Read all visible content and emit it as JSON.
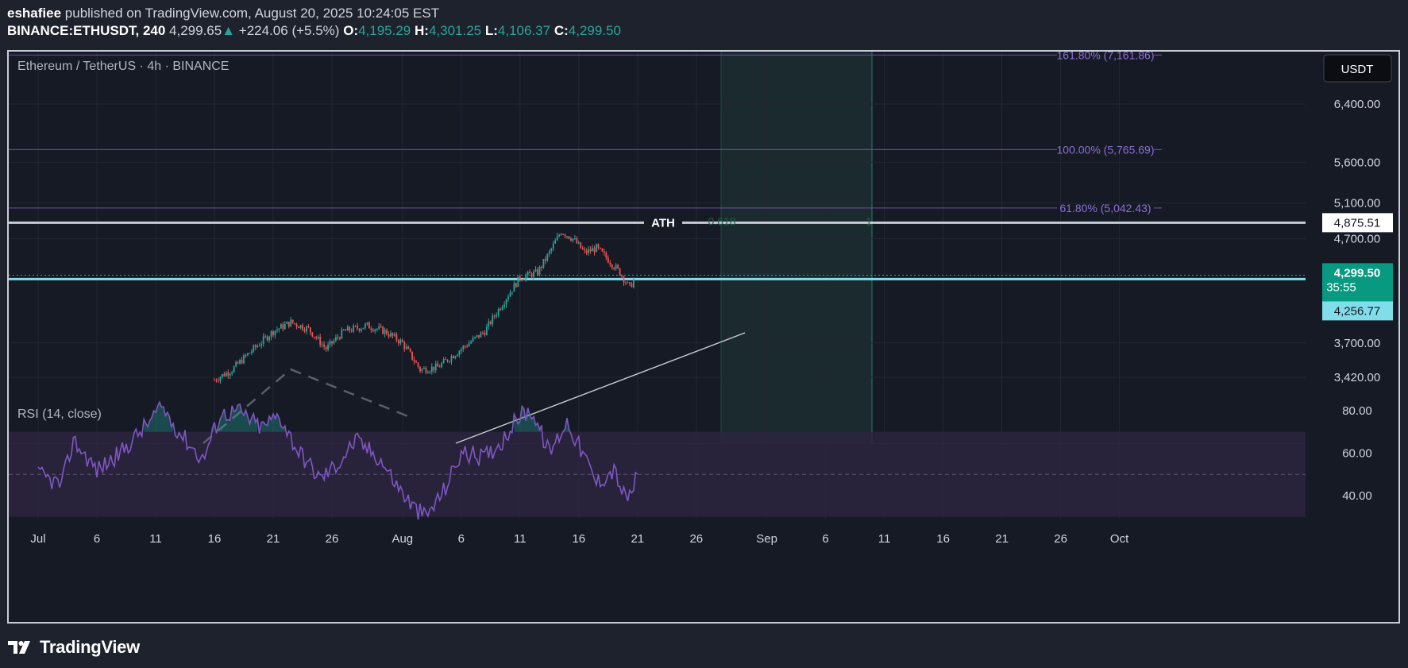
{
  "header": {
    "user": "eshafiee",
    "published_text": "published on TradingView.com, August 20, 2025 10:24:05 EST",
    "symbol": "BINANCE:ETHUSDT, 240",
    "price": "4,299.65",
    "change": "+224.06 (+5.5%)",
    "open_label": "O:",
    "open": "4,195.29",
    "high_label": "H:",
    "high": "4,301.25",
    "low_label": "L:",
    "low": "4,106.37",
    "close_label": "C:",
    "close": "4,299.50"
  },
  "chart": {
    "pair_title": "Ethereum / TetherUS · 4h · BINANCE",
    "currency_button": "USDT",
    "ath_label": "ATH",
    "faint_level_label": "0.618",
    "faint_level_right": "1",
    "rsi_label": "RSI (14, close)",
    "current_price_label": "4,299.50",
    "countdown": "35:55",
    "support_label": "4,256.77",
    "ath_price_label": "4,875.51"
  },
  "chart_data": {
    "type": "candlestick",
    "price_axis": {
      "scale": "log",
      "tick_labels": [
        "6,400.00",
        "5,600.00",
        "5,100.00",
        "4,700.00",
        "3,700.00",
        "3,420.00"
      ],
      "tick_values": [
        6400,
        5600,
        5100,
        4700,
        3700,
        3420
      ]
    },
    "rsi_axis": {
      "tick_labels": [
        "80.00",
        "60.00",
        "40.00"
      ],
      "tick_values": [
        80,
        60,
        40
      ],
      "band": [
        30,
        70
      ],
      "midline": 50
    },
    "x_axis": {
      "tick_labels": [
        "Jul",
        "6",
        "11",
        "16",
        "21",
        "26",
        "Aug",
        "6",
        "11",
        "16",
        "21",
        "26",
        "Sep",
        "6",
        "11",
        "16",
        "21",
        "26",
        "Oct"
      ],
      "tick_days": [
        0,
        5,
        10,
        15,
        20,
        25,
        31,
        36,
        41,
        46,
        51,
        56,
        62,
        67,
        72,
        77,
        82,
        87,
        92
      ]
    },
    "fib_levels": [
      {
        "label": "161.80% (7,161.86)",
        "value": 7161.86
      },
      {
        "label": "100.00% (5,765.69)",
        "value": 5765.69
      },
      {
        "label": "61.80% (5,042.43)",
        "value": 5042.43
      }
    ],
    "levels": {
      "ath": 4875.51,
      "current": 4299.5,
      "support": 4256.77
    },
    "price_anchors": [
      {
        "day": 15.0,
        "price": 3400
      },
      {
        "day": 16.5,
        "price": 3480
      },
      {
        "day": 18.0,
        "price": 3620
      },
      {
        "day": 20.0,
        "price": 3800
      },
      {
        "day": 21.5,
        "price": 3880
      },
      {
        "day": 23.0,
        "price": 3820
      },
      {
        "day": 24.5,
        "price": 3650
      },
      {
        "day": 26.0,
        "price": 3800
      },
      {
        "day": 28.0,
        "price": 3850
      },
      {
        "day": 29.5,
        "price": 3800
      },
      {
        "day": 31.0,
        "price": 3700
      },
      {
        "day": 32.5,
        "price": 3480
      },
      {
        "day": 34.0,
        "price": 3500
      },
      {
        "day": 36.0,
        "price": 3650
      },
      {
        "day": 38.0,
        "price": 3800
      },
      {
        "day": 39.5,
        "price": 4050
      },
      {
        "day": 41.0,
        "price": 4300
      },
      {
        "day": 42.5,
        "price": 4350
      },
      {
        "day": 43.5,
        "price": 4550
      },
      {
        "day": 44.5,
        "price": 4780
      },
      {
        "day": 45.5,
        "price": 4700
      },
      {
        "day": 46.5,
        "price": 4550
      },
      {
        "day": 47.5,
        "price": 4600
      },
      {
        "day": 48.5,
        "price": 4480
      },
      {
        "day": 49.5,
        "price": 4350
      },
      {
        "day": 50.3,
        "price": 4200
      },
      {
        "day": 50.8,
        "price": 4300
      }
    ],
    "rsi_anchors": [
      {
        "day": 0,
        "value": 50
      },
      {
        "day": 2,
        "value": 45
      },
      {
        "day": 3,
        "value": 66
      },
      {
        "day": 5,
        "value": 52
      },
      {
        "day": 7,
        "value": 60
      },
      {
        "day": 9.5,
        "value": 75
      },
      {
        "day": 10.5,
        "value": 82
      },
      {
        "day": 12,
        "value": 70
      },
      {
        "day": 14,
        "value": 57
      },
      {
        "day": 15.5,
        "value": 78
      },
      {
        "day": 17,
        "value": 80
      },
      {
        "day": 19,
        "value": 72
      },
      {
        "day": 20.5,
        "value": 78
      },
      {
        "day": 22,
        "value": 62
      },
      {
        "day": 24,
        "value": 48
      },
      {
        "day": 25.5,
        "value": 55
      },
      {
        "day": 27,
        "value": 66
      },
      {
        "day": 29,
        "value": 58
      },
      {
        "day": 30.5,
        "value": 45
      },
      {
        "day": 32,
        "value": 34
      },
      {
        "day": 33,
        "value": 30
      },
      {
        "day": 34.5,
        "value": 42
      },
      {
        "day": 36,
        "value": 60
      },
      {
        "day": 38,
        "value": 58
      },
      {
        "day": 39.5,
        "value": 66
      },
      {
        "day": 41,
        "value": 78
      },
      {
        "day": 42,
        "value": 80
      },
      {
        "day": 43.5,
        "value": 60
      },
      {
        "day": 45,
        "value": 75
      },
      {
        "day": 46.5,
        "value": 58
      },
      {
        "day": 47.5,
        "value": 46
      },
      {
        "day": 49,
        "value": 52
      },
      {
        "day": 50,
        "value": 38
      },
      {
        "day": 50.5,
        "value": 42
      },
      {
        "day": 51,
        "value": 49
      }
    ]
  },
  "footer": {
    "brand": "TradingView"
  },
  "colors": {
    "up": "#26a69a",
    "down": "#ef5350",
    "fib": "#7e57c2",
    "current_line": "#80deea",
    "rsi_line": "#7e57c2"
  }
}
